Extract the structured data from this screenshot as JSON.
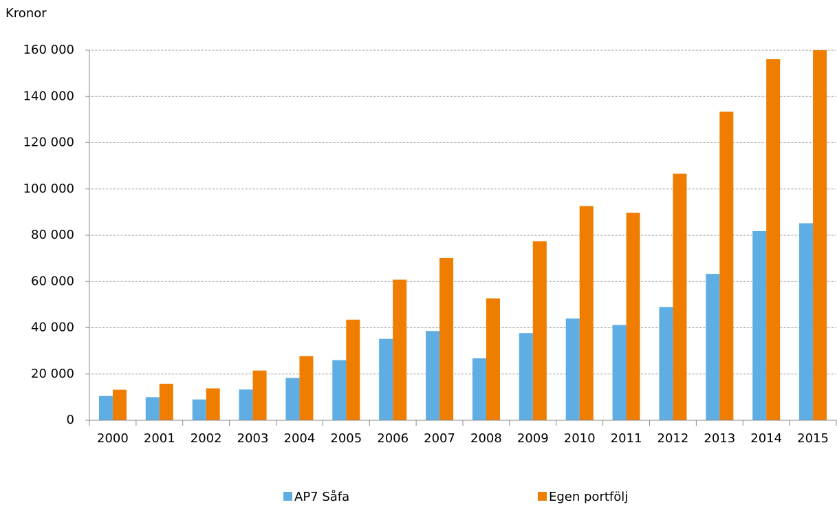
{
  "chart_data": {
    "type": "bar",
    "y_axis_label": "Kronor",
    "categories": [
      "2000",
      "2001",
      "2002",
      "2003",
      "2004",
      "2005",
      "2006",
      "2007",
      "2008",
      "2009",
      "2010",
      "2011",
      "2012",
      "2013",
      "2014",
      "2015"
    ],
    "series": [
      {
        "name": "AP7 Såfa",
        "color": "#5faee3",
        "values": [
          10500,
          10000,
          9000,
          13300,
          18300,
          26000,
          35200,
          38600,
          26800,
          37700,
          44000,
          41200,
          49000,
          63300,
          81800,
          85200
        ]
      },
      {
        "name": "Egen portfölj",
        "color": "#ef7d00",
        "values": [
          13200,
          15800,
          13800,
          21500,
          27700,
          43500,
          60800,
          70200,
          52700,
          77400,
          92600,
          89700,
          106600,
          133400,
          156100,
          160000
        ]
      }
    ],
    "ylim": [
      0,
      160000
    ],
    "yticks": [
      0,
      {
        "value": 20000,
        "label": "20 000"
      },
      {
        "value": 40000,
        "label": "40 000"
      },
      {
        "value": 60000,
        "label": "60 000"
      },
      {
        "value": 80000,
        "label": "80 000"
      },
      {
        "value": 100000,
        "label": "100 000"
      },
      {
        "value": 120000,
        "label": "120 000"
      },
      {
        "value": 140000,
        "label": "140 000"
      },
      {
        "value": 160000,
        "label": "160 000"
      }
    ],
    "grid": true
  }
}
